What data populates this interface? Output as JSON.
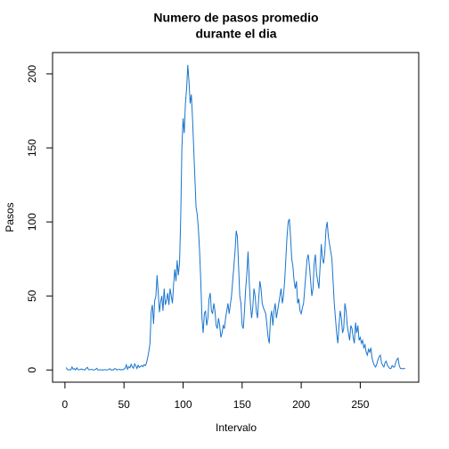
{
  "chart_data": {
    "type": "line",
    "title": [
      "Numero de pasos promedio",
      "durante el dia"
    ],
    "xlabel": "Intervalo",
    "ylabel": "Pasos",
    "x": [
      1,
      2,
      3,
      4,
      5,
      6,
      7,
      8,
      9,
      10,
      11,
      12,
      13,
      14,
      15,
      16,
      17,
      18,
      19,
      20,
      21,
      22,
      23,
      24,
      25,
      26,
      27,
      28,
      29,
      30,
      31,
      32,
      33,
      34,
      35,
      36,
      37,
      38,
      39,
      40,
      41,
      42,
      43,
      44,
      45,
      46,
      47,
      48,
      49,
      50,
      51,
      52,
      53,
      54,
      55,
      56,
      57,
      58,
      59,
      60,
      61,
      62,
      63,
      64,
      65,
      66,
      67,
      68,
      69,
      70,
      71,
      72,
      73,
      74,
      75,
      76,
      77,
      78,
      79,
      80,
      81,
      82,
      83,
      84,
      85,
      86,
      87,
      88,
      89,
      90,
      91,
      92,
      93,
      94,
      95,
      96,
      97,
      98,
      99,
      100,
      101,
      102,
      103,
      104,
      105,
      106,
      107,
      108,
      109,
      110,
      111,
      112,
      113,
      114,
      115,
      116,
      117,
      118,
      119,
      120,
      121,
      122,
      123,
      124,
      125,
      126,
      127,
      128,
      129,
      130,
      131,
      132,
      133,
      134,
      135,
      136,
      137,
      138,
      139,
      140,
      141,
      142,
      143,
      144,
      145,
      146,
      147,
      148,
      149,
      150,
      151,
      152,
      153,
      154,
      155,
      156,
      157,
      158,
      159,
      160,
      161,
      162,
      163,
      164,
      165,
      166,
      167,
      168,
      169,
      170,
      171,
      172,
      173,
      174,
      175,
      176,
      177,
      178,
      179,
      180,
      181,
      182,
      183,
      184,
      185,
      186,
      187,
      188,
      189,
      190,
      191,
      192,
      193,
      194,
      195,
      196,
      197,
      198,
      199,
      200,
      201,
      202,
      203,
      204,
      205,
      206,
      207,
      208,
      209,
      210,
      211,
      212,
      213,
      214,
      215,
      216,
      217,
      218,
      219,
      220,
      221,
      222,
      223,
      224,
      225,
      226,
      227,
      228,
      229,
      230,
      231,
      232,
      233,
      234,
      235,
      236,
      237,
      238,
      239,
      240,
      241,
      242,
      243,
      244,
      245,
      246,
      247,
      248,
      249,
      250,
      251,
      252,
      253,
      254,
      255,
      256,
      257,
      258,
      259,
      260,
      261,
      262,
      263,
      264,
      265,
      266,
      267,
      268,
      269,
      270,
      271,
      272,
      273,
      274,
      275,
      276,
      277,
      278,
      279,
      280,
      281,
      282,
      283,
      284,
      285,
      286,
      287,
      288
    ],
    "series": [
      {
        "color": "#1874cd",
        "values": [
          1.7,
          0.3,
          0.1,
          0.2,
          0.1,
          2.1,
          0.5,
          0.9,
          0,
          1.5,
          0.3,
          0.1,
          0.3,
          0.7,
          0.2,
          0.3,
          0,
          1.1,
          1.8,
          0.2,
          0.2,
          0.4,
          0.3,
          0,
          0,
          0.5,
          1.1,
          0,
          0,
          0.2,
          0,
          0.1,
          0,
          0.3,
          0,
          0,
          0.4,
          0.9,
          0,
          0.1,
          0,
          0.9,
          0.8,
          0,
          0.2,
          0.5,
          0,
          0.4,
          0.1,
          0.5,
          1.2,
          3.5,
          0.5,
          2.3,
          1.5,
          3.8,
          2.1,
          1.2,
          4.1,
          2.8,
          1.0,
          3.2,
          1.7,
          2.4,
          3.0,
          2.2,
          3.6,
          2.9,
          4.5,
          8.2,
          12.4,
          18,
          39,
          44,
          31,
          47,
          50,
          64,
          52,
          39,
          46,
          50,
          40,
          55,
          44,
          47,
          52,
          44,
          55,
          50,
          45,
          58,
          68,
          60,
          74,
          64,
          72,
          102,
          150,
          170,
          160,
          180,
          190,
          206,
          195,
          180,
          186,
          170,
          150,
          130,
          110,
          105,
          95,
          80,
          60,
          35,
          25,
          38,
          40,
          30,
          35,
          48,
          52,
          40,
          38,
          45,
          40,
          30,
          28,
          35,
          30,
          22,
          25,
          30,
          28,
          35,
          40,
          45,
          38,
          44,
          50,
          60,
          70,
          80,
          94,
          90,
          70,
          50,
          45,
          30,
          28,
          40,
          55,
          65,
          80,
          60,
          45,
          35,
          42,
          55,
          50,
          40,
          35,
          48,
          60,
          55,
          45,
          42,
          40,
          38,
          30,
          22,
          18,
          35,
          40,
          30,
          40,
          45,
          35,
          40,
          45,
          50,
          55,
          45,
          50,
          60,
          75,
          90,
          100,
          102,
          90,
          75,
          70,
          60,
          55,
          60,
          45,
          48,
          40,
          38,
          42,
          45,
          55,
          65,
          75,
          78,
          70,
          60,
          50,
          55,
          72,
          78,
          65,
          60,
          55,
          70,
          85,
          75,
          72,
          80,
          95,
          100,
          90,
          85,
          80,
          75,
          60,
          45,
          35,
          25,
          18,
          30,
          40,
          35,
          25,
          28,
          45,
          40,
          30,
          25,
          20,
          30,
          28,
          22,
          18,
          32,
          25,
          30,
          20,
          22,
          18,
          20,
          15,
          17,
          12,
          10,
          14,
          12,
          15,
          8,
          5,
          3,
          2,
          4,
          7,
          9,
          10,
          5,
          3,
          2,
          5,
          6,
          3,
          2,
          1,
          1,
          3,
          2,
          2,
          5,
          7,
          8,
          3,
          1,
          1,
          0.8,
          1,
          1
        ]
      }
    ],
    "xlim": [
      -10.48,
      299.48
    ],
    "xticks": [
      0,
      50,
      100,
      150,
      200,
      250
    ],
    "ylim": [
      -8.25,
      214.4
    ],
    "yticks": [
      0,
      50,
      100,
      150,
      200
    ]
  }
}
